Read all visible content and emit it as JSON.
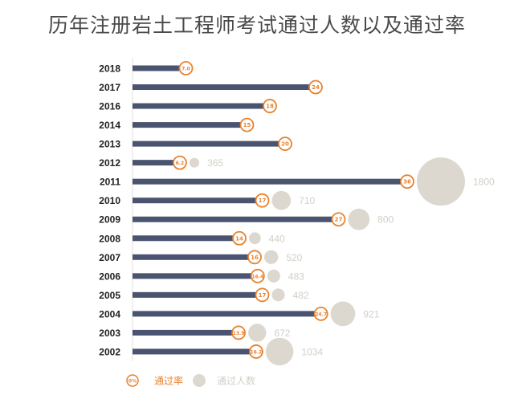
{
  "title": "历年注册岩土工程师考试通过人数以及通过率",
  "chart_data": {
    "type": "bar",
    "title": "历年注册岩土工程师考试通过人数以及通过率",
    "categories": [
      "2018",
      "2017",
      "2016",
      "2014",
      "2013",
      "2012",
      "2011",
      "2010",
      "2009",
      "2008",
      "2007",
      "2006",
      "2005",
      "2004",
      "2003",
      "2002"
    ],
    "series": [
      {
        "name": "通过率",
        "unit": "%",
        "values": [
          7.0,
          24,
          18,
          15,
          20,
          6.2,
          36,
          17,
          27,
          14,
          16,
          16.4,
          17,
          24.7,
          13.9,
          16.2
        ],
        "labels": [
          "7.0",
          "24",
          "18",
          "15",
          "20",
          "6.2",
          "36",
          "17",
          "27",
          "14",
          "16",
          "16.4",
          "17",
          "24.7",
          "13.9",
          "16.2"
        ]
      },
      {
        "name": "通过人数",
        "values": [
          null,
          null,
          null,
          null,
          null,
          365,
          1800,
          710,
          800,
          440,
          520,
          483,
          482,
          921,
          672,
          1034
        ]
      }
    ],
    "legend": {
      "position": "bottom-left",
      "rate_marker": "0%",
      "rate_label": "通过率",
      "count_label": "通过人数"
    },
    "colors": {
      "bar": "#4a5470",
      "rate": "#e8822e",
      "bubble": "#ddd8cf",
      "count_text": "#d3cfc8",
      "year": "#222222"
    }
  }
}
